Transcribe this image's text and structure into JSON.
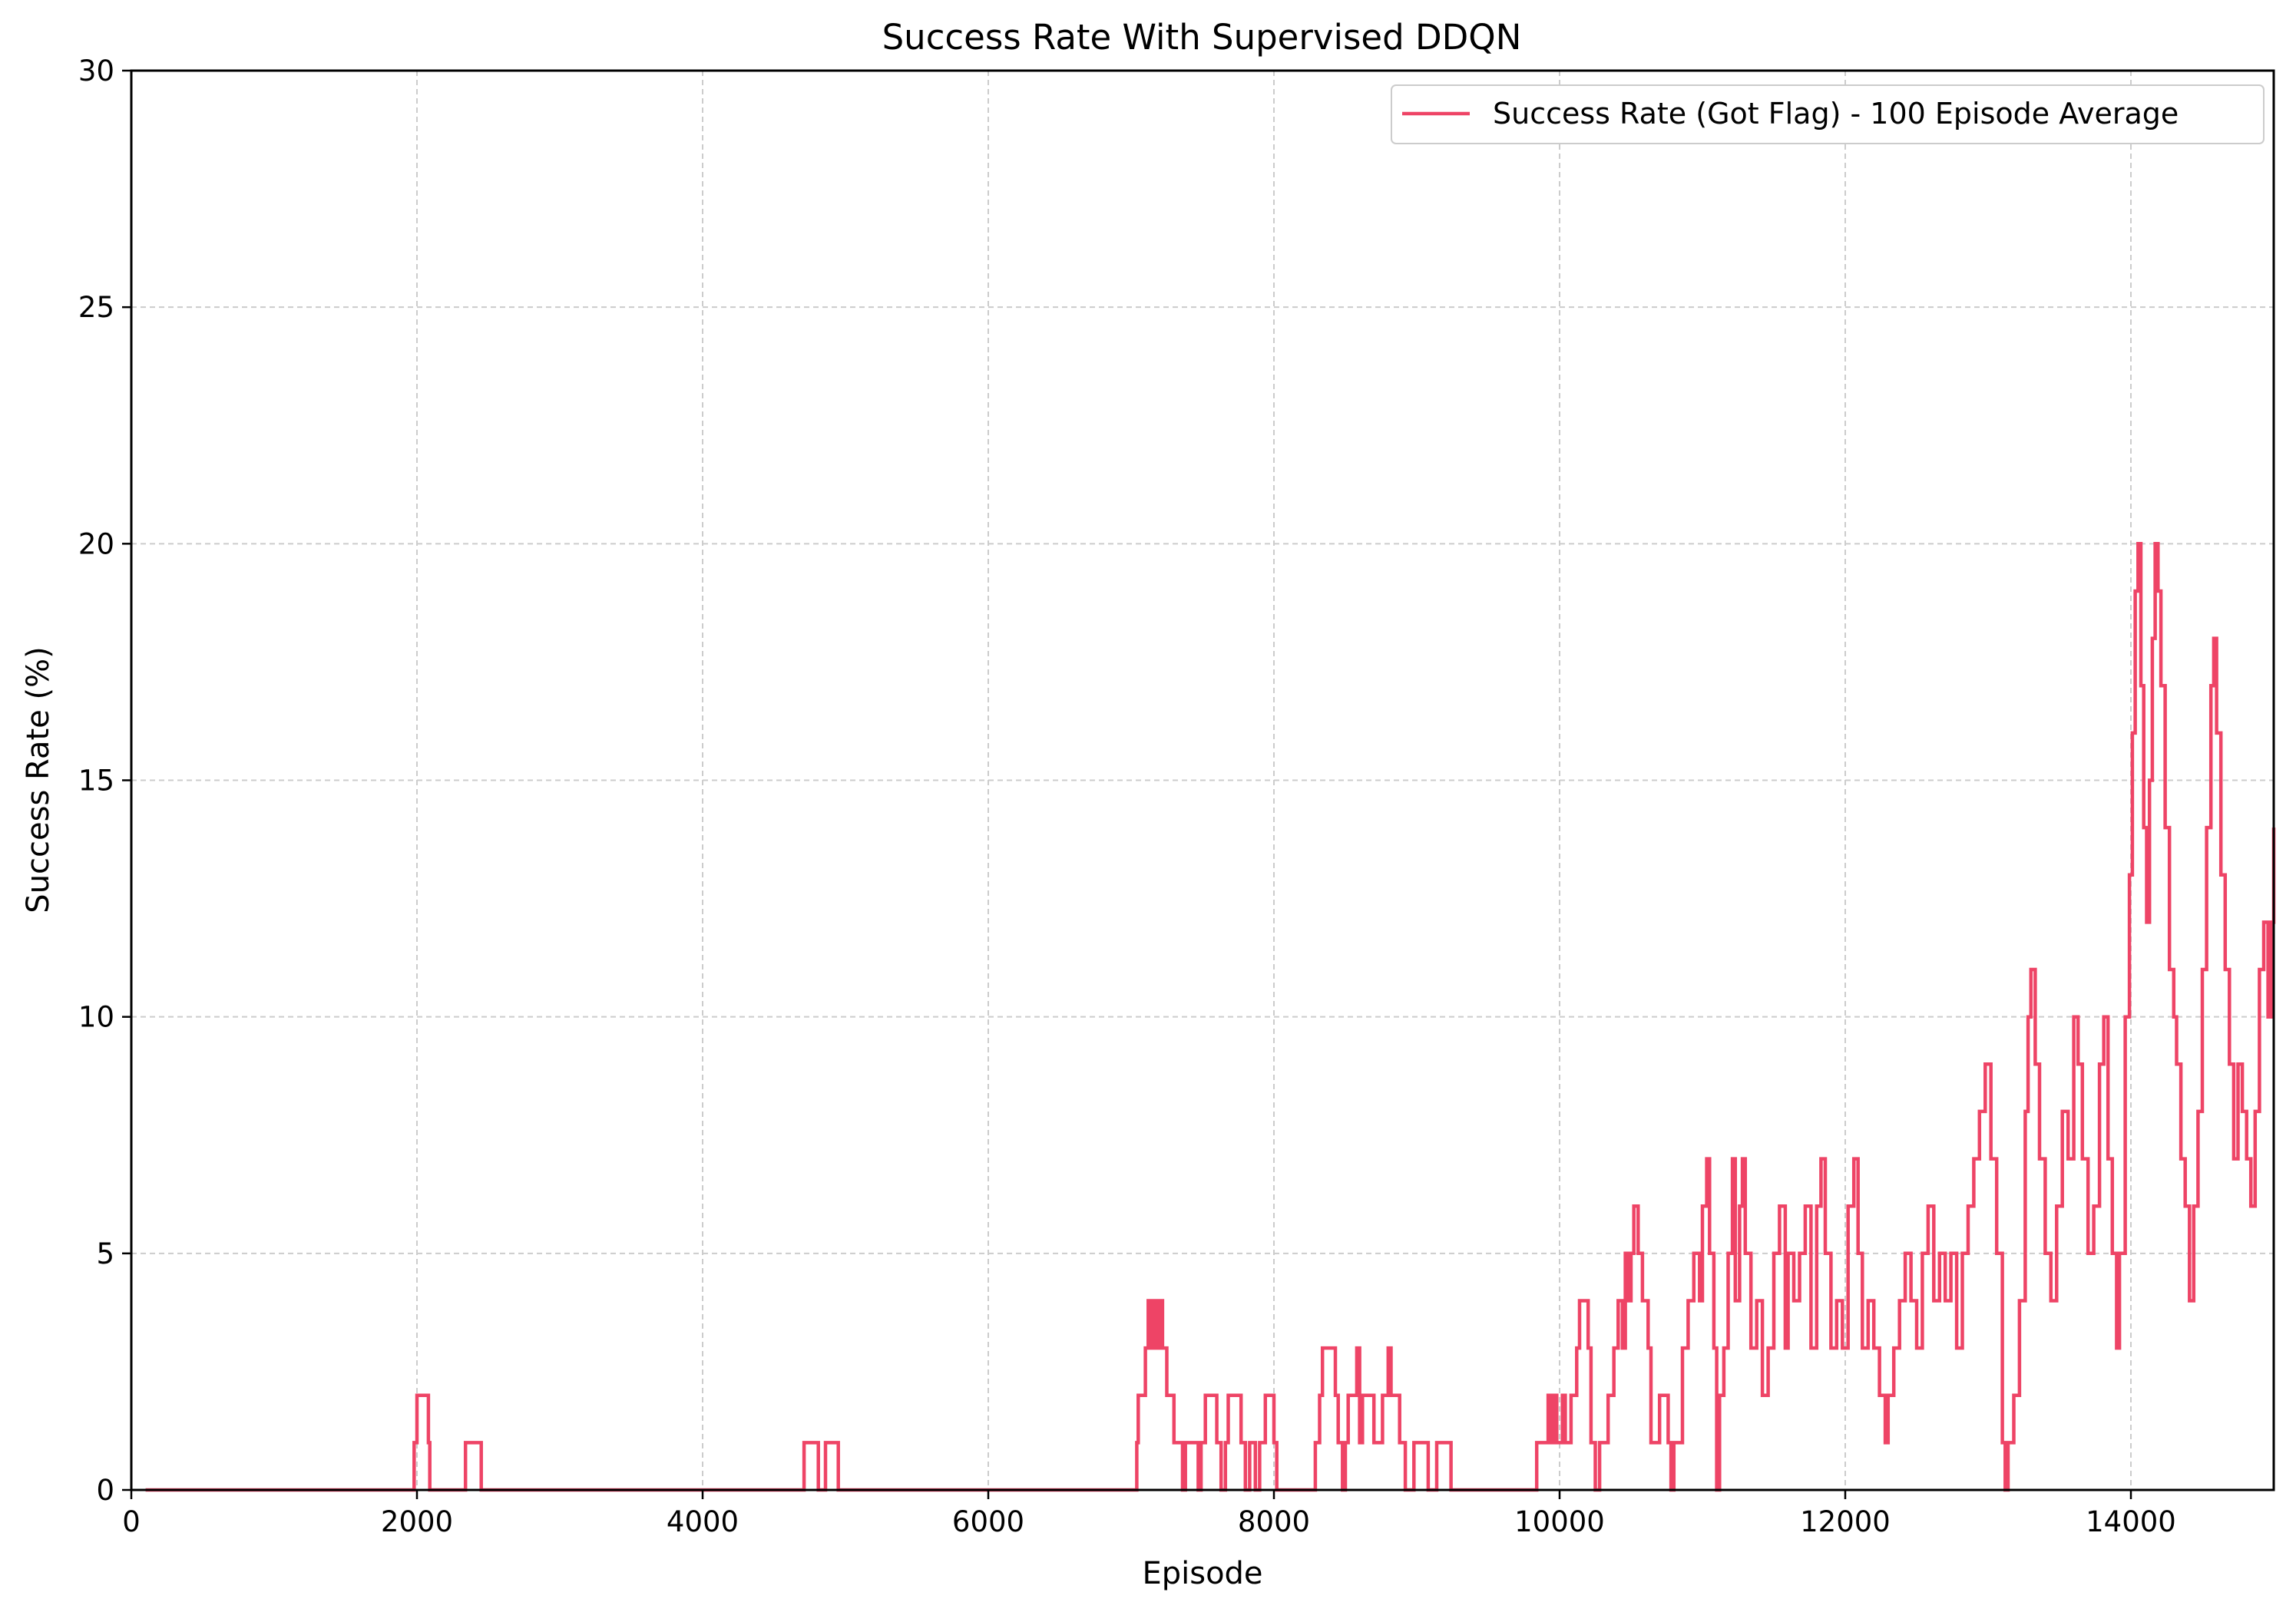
{
  "chart_data": {
    "type": "line",
    "title": "Success Rate With Supervised DDQN",
    "xlabel": "Episode",
    "ylabel": "Success Rate (%)",
    "xlim": [
      0,
      15000
    ],
    "ylim": [
      0,
      30
    ],
    "xticks": [
      0,
      2000,
      4000,
      6000,
      8000,
      10000,
      12000,
      14000
    ],
    "yticks": [
      0,
      5,
      10,
      15,
      20,
      25,
      30
    ],
    "grid": true,
    "legend_position": "top-right",
    "colors": {
      "series": "#ee4466",
      "grid": "#cccccc",
      "axes": "#000000"
    },
    "series": [
      {
        "name": "Success Rate (Got Flag) - 100 Episode Average",
        "step": true,
        "points": [
          [
            100,
            0
          ],
          [
            1970,
            0
          ],
          [
            1980,
            1
          ],
          [
            2000,
            2
          ],
          [
            2070,
            2
          ],
          [
            2080,
            1
          ],
          [
            2090,
            0
          ],
          [
            2330,
            0
          ],
          [
            2340,
            1
          ],
          [
            2440,
            1
          ],
          [
            2450,
            0
          ],
          [
            4700,
            0
          ],
          [
            4710,
            1
          ],
          [
            4800,
            1
          ],
          [
            4810,
            0
          ],
          [
            4850,
            0
          ],
          [
            4860,
            1
          ],
          [
            4940,
            1
          ],
          [
            4950,
            0
          ],
          [
            7030,
            0
          ],
          [
            7040,
            1
          ],
          [
            7050,
            2
          ],
          [
            7100,
            3
          ],
          [
            7120,
            4
          ],
          [
            7140,
            3
          ],
          [
            7160,
            4
          ],
          [
            7180,
            3
          ],
          [
            7200,
            4
          ],
          [
            7220,
            3
          ],
          [
            7250,
            2
          ],
          [
            7300,
            1
          ],
          [
            7360,
            0
          ],
          [
            7380,
            1
          ],
          [
            7470,
            0
          ],
          [
            7490,
            1
          ],
          [
            7520,
            2
          ],
          [
            7600,
            1
          ],
          [
            7630,
            0
          ],
          [
            7660,
            1
          ],
          [
            7680,
            2
          ],
          [
            7770,
            1
          ],
          [
            7800,
            0
          ],
          [
            7830,
            1
          ],
          [
            7870,
            0
          ],
          [
            7900,
            1
          ],
          [
            7940,
            2
          ],
          [
            8000,
            1
          ],
          [
            8020,
            0
          ],
          [
            8270,
            0
          ],
          [
            8290,
            1
          ],
          [
            8320,
            2
          ],
          [
            8340,
            3
          ],
          [
            8430,
            2
          ],
          [
            8450,
            1
          ],
          [
            8480,
            0
          ],
          [
            8500,
            1
          ],
          [
            8520,
            2
          ],
          [
            8580,
            3
          ],
          [
            8600,
            1
          ],
          [
            8620,
            2
          ],
          [
            8700,
            1
          ],
          [
            8760,
            2
          ],
          [
            8800,
            3
          ],
          [
            8820,
            2
          ],
          [
            8880,
            1
          ],
          [
            8920,
            0
          ],
          [
            8980,
            1
          ],
          [
            9080,
            0
          ],
          [
            9140,
            1
          ],
          [
            9240,
            0
          ],
          [
            9820,
            0
          ],
          [
            9840,
            1
          ],
          [
            9920,
            2
          ],
          [
            9940,
            1
          ],
          [
            9960,
            2
          ],
          [
            9980,
            1
          ],
          [
            10020,
            2
          ],
          [
            10040,
            1
          ],
          [
            10080,
            2
          ],
          [
            10120,
            3
          ],
          [
            10140,
            4
          ],
          [
            10200,
            3
          ],
          [
            10220,
            1
          ],
          [
            10250,
            0
          ],
          [
            10280,
            1
          ],
          [
            10340,
            2
          ],
          [
            10380,
            3
          ],
          [
            10410,
            4
          ],
          [
            10440,
            3
          ],
          [
            10460,
            5
          ],
          [
            10480,
            4
          ],
          [
            10500,
            5
          ],
          [
            10520,
            6
          ],
          [
            10550,
            5
          ],
          [
            10580,
            4
          ],
          [
            10620,
            3
          ],
          [
            10640,
            1
          ],
          [
            10700,
            2
          ],
          [
            10760,
            1
          ],
          [
            10780,
            0
          ],
          [
            10800,
            1
          ],
          [
            10860,
            3
          ],
          [
            10900,
            4
          ],
          [
            10940,
            5
          ],
          [
            10980,
            4
          ],
          [
            11000,
            6
          ],
          [
            11030,
            7
          ],
          [
            11050,
            5
          ],
          [
            11080,
            3
          ],
          [
            11100,
            0
          ],
          [
            11120,
            2
          ],
          [
            11150,
            3
          ],
          [
            11180,
            5
          ],
          [
            11210,
            7
          ],
          [
            11230,
            4
          ],
          [
            11260,
            6
          ],
          [
            11280,
            7
          ],
          [
            11300,
            5
          ],
          [
            11340,
            3
          ],
          [
            11380,
            4
          ],
          [
            11420,
            2
          ],
          [
            11460,
            3
          ],
          [
            11500,
            5
          ],
          [
            11540,
            6
          ],
          [
            11580,
            3
          ],
          [
            11600,
            5
          ],
          [
            11640,
            4
          ],
          [
            11680,
            5
          ],
          [
            11720,
            6
          ],
          [
            11760,
            3
          ],
          [
            11800,
            6
          ],
          [
            11830,
            7
          ],
          [
            11860,
            5
          ],
          [
            11900,
            3
          ],
          [
            11940,
            4
          ],
          [
            11980,
            3
          ],
          [
            12020,
            6
          ],
          [
            12060,
            7
          ],
          [
            12090,
            5
          ],
          [
            12120,
            3
          ],
          [
            12160,
            4
          ],
          [
            12200,
            3
          ],
          [
            12240,
            2
          ],
          [
            12280,
            1
          ],
          [
            12300,
            2
          ],
          [
            12340,
            3
          ],
          [
            12380,
            4
          ],
          [
            12420,
            5
          ],
          [
            12460,
            4
          ],
          [
            12500,
            3
          ],
          [
            12540,
            5
          ],
          [
            12580,
            6
          ],
          [
            12620,
            4
          ],
          [
            12660,
            5
          ],
          [
            12700,
            4
          ],
          [
            12740,
            5
          ],
          [
            12780,
            3
          ],
          [
            12820,
            5
          ],
          [
            12860,
            6
          ],
          [
            12900,
            7
          ],
          [
            12940,
            8
          ],
          [
            12980,
            9
          ],
          [
            13020,
            7
          ],
          [
            13060,
            5
          ],
          [
            13100,
            1
          ],
          [
            13120,
            0
          ],
          [
            13140,
            1
          ],
          [
            13180,
            2
          ],
          [
            13220,
            4
          ],
          [
            13260,
            8
          ],
          [
            13280,
            10
          ],
          [
            13300,
            11
          ],
          [
            13330,
            9
          ],
          [
            13360,
            7
          ],
          [
            13400,
            5
          ],
          [
            13440,
            4
          ],
          [
            13480,
            6
          ],
          [
            13520,
            8
          ],
          [
            13560,
            7
          ],
          [
            13600,
            10
          ],
          [
            13630,
            9
          ],
          [
            13660,
            7
          ],
          [
            13700,
            5
          ],
          [
            13740,
            6
          ],
          [
            13780,
            9
          ],
          [
            13810,
            10
          ],
          [
            13840,
            7
          ],
          [
            13870,
            5
          ],
          [
            13900,
            3
          ],
          [
            13920,
            5
          ],
          [
            13960,
            10
          ],
          [
            13990,
            13
          ],
          [
            14010,
            16
          ],
          [
            14030,
            19
          ],
          [
            14050,
            20
          ],
          [
            14070,
            17
          ],
          [
            14090,
            14
          ],
          [
            14110,
            12
          ],
          [
            14130,
            15
          ],
          [
            14150,
            18
          ],
          [
            14170,
            20
          ],
          [
            14190,
            19
          ],
          [
            14210,
            17
          ],
          [
            14240,
            14
          ],
          [
            14270,
            11
          ],
          [
            14300,
            10
          ],
          [
            14320,
            9
          ],
          [
            14350,
            7
          ],
          [
            14380,
            6
          ],
          [
            14410,
            4
          ],
          [
            14440,
            6
          ],
          [
            14470,
            8
          ],
          [
            14500,
            11
          ],
          [
            14530,
            14
          ],
          [
            14560,
            17
          ],
          [
            14580,
            18
          ],
          [
            14600,
            16
          ],
          [
            14630,
            13
          ],
          [
            14660,
            11
          ],
          [
            14690,
            9
          ],
          [
            14720,
            7
          ],
          [
            14750,
            9
          ],
          [
            14780,
            8
          ],
          [
            14810,
            7
          ],
          [
            14840,
            6
          ],
          [
            14870,
            8
          ],
          [
            14900,
            11
          ],
          [
            14930,
            12
          ],
          [
            14960,
            10
          ],
          [
            14980,
            12
          ],
          [
            15000,
            14
          ]
        ]
      }
    ]
  }
}
